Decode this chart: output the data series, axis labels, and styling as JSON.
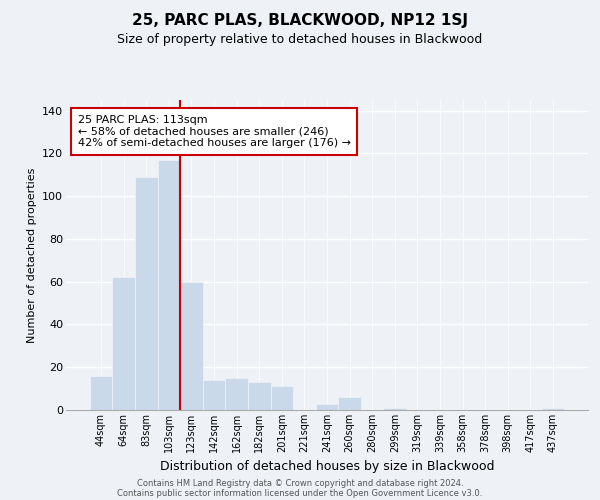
{
  "title": "25, PARC PLAS, BLACKWOOD, NP12 1SJ",
  "subtitle": "Size of property relative to detached houses in Blackwood",
  "xlabel": "Distribution of detached houses by size in Blackwood",
  "ylabel": "Number of detached properties",
  "bar_labels": [
    "44sqm",
    "64sqm",
    "83sqm",
    "103sqm",
    "123sqm",
    "142sqm",
    "162sqm",
    "182sqm",
    "201sqm",
    "221sqm",
    "241sqm",
    "260sqm",
    "280sqm",
    "299sqm",
    "319sqm",
    "339sqm",
    "358sqm",
    "378sqm",
    "398sqm",
    "417sqm",
    "437sqm"
  ],
  "bar_values": [
    16,
    62,
    109,
    117,
    60,
    14,
    15,
    13,
    11,
    0,
    3,
    6,
    0,
    1,
    0,
    0,
    0,
    0,
    0,
    0,
    1
  ],
  "marker_bar_index": 4,
  "bar_color": "#c9d9ea",
  "marker_line_color": "#cc0000",
  "annotation_text_line1": "25 PARC PLAS: 113sqm",
  "annotation_text_line2": "← 58% of detached houses are smaller (246)",
  "annotation_text_line3": "42% of semi-detached houses are larger (176) →",
  "annotation_box_facecolor": "#ffffff",
  "annotation_box_edgecolor": "#cc0000",
  "ylim": [
    0,
    145
  ],
  "yticks": [
    0,
    20,
    40,
    60,
    80,
    100,
    120,
    140
  ],
  "footer_line1": "Contains HM Land Registry data © Crown copyright and database right 2024.",
  "footer_line2": "Contains public sector information licensed under the Open Government Licence v3.0.",
  "background_color": "#eef2f7",
  "grid_color": "#ffffff",
  "title_fontsize": 11,
  "subtitle_fontsize": 9,
  "ylabel_fontsize": 8,
  "xlabel_fontsize": 9
}
